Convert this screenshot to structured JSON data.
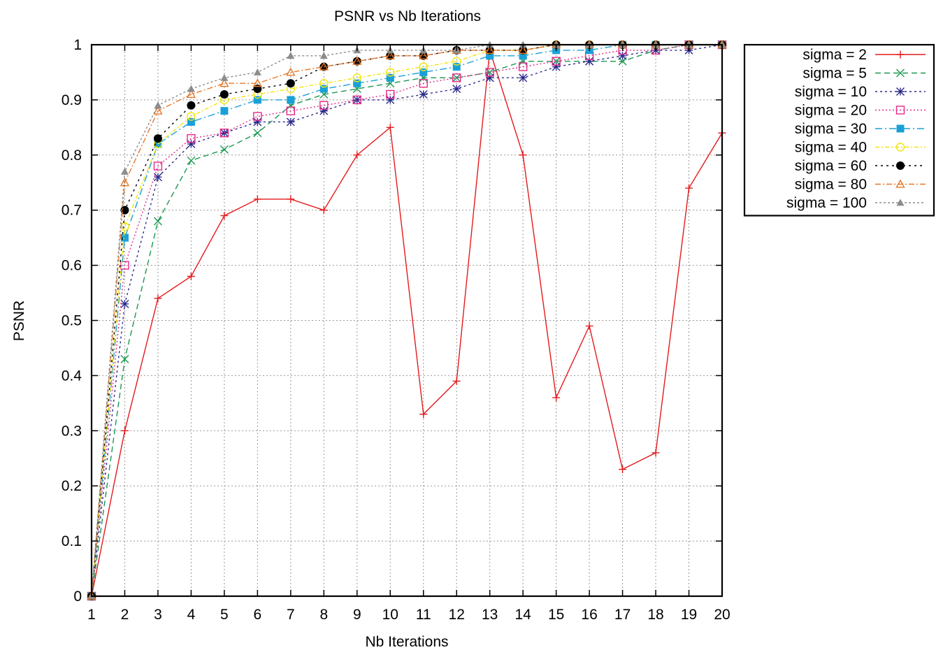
{
  "chart_data": {
    "type": "line",
    "title": "PSNR vs Nb Iterations",
    "xlabel": "Nb Iterations",
    "ylabel": "PSNR",
    "x": [
      1,
      2,
      3,
      4,
      5,
      6,
      7,
      8,
      9,
      10,
      11,
      12,
      13,
      14,
      15,
      16,
      17,
      18,
      19,
      20
    ],
    "xlim": [
      1,
      20
    ],
    "ylim": [
      0,
      1
    ],
    "xticks": [
      "1",
      "2",
      "3",
      "4",
      "5",
      "6",
      "7",
      "8",
      "9",
      "10",
      "11",
      "12",
      "13",
      "14",
      "15",
      "16",
      "17",
      "18",
      "19",
      "20"
    ],
    "yticks": [
      "0",
      "0.1",
      "0.2",
      "0.3",
      "0.4",
      "0.5",
      "0.6",
      "0.7",
      "0.8",
      "0.9",
      "1"
    ],
    "grid": true,
    "legend_position": "outside-top-right",
    "series": [
      {
        "name": "sigma = 2",
        "color": "#e41a1c",
        "marker": "plus",
        "dash": "",
        "values": [
          0,
          0.3,
          0.54,
          0.58,
          0.69,
          0.72,
          0.72,
          0.7,
          0.8,
          0.85,
          0.33,
          0.39,
          0.99,
          0.8,
          0.36,
          0.49,
          0.23,
          0.26,
          0.74,
          0.84
        ]
      },
      {
        "name": "sigma = 5",
        "color": "#1a9850",
        "marker": "cross",
        "dash": "8,5",
        "values": [
          0,
          0.43,
          0.68,
          0.79,
          0.81,
          0.84,
          0.89,
          0.91,
          0.92,
          0.93,
          0.94,
          0.94,
          0.95,
          0.97,
          0.97,
          0.97,
          0.97,
          0.99,
          1.0,
          1.0
        ]
      },
      {
        "name": "sigma = 10",
        "color": "#2b2b8c",
        "marker": "star",
        "dash": "3,4",
        "values": [
          0,
          0.53,
          0.76,
          0.82,
          0.84,
          0.86,
          0.86,
          0.88,
          0.9,
          0.9,
          0.91,
          0.92,
          0.94,
          0.94,
          0.96,
          0.97,
          0.98,
          0.99,
          0.99,
          1.0
        ]
      },
      {
        "name": "sigma = 20",
        "color": "#e7298a",
        "marker": "square-open",
        "dash": "2,3",
        "values": [
          0,
          0.6,
          0.78,
          0.83,
          0.84,
          0.87,
          0.88,
          0.89,
          0.9,
          0.91,
          0.93,
          0.94,
          0.95,
          0.96,
          0.97,
          0.98,
          0.99,
          0.99,
          1.0,
          1.0
        ]
      },
      {
        "name": "sigma = 30",
        "color": "#1aa0d8",
        "marker": "square-filled",
        "dash": "10,4,2,4",
        "values": [
          0,
          0.65,
          0.82,
          0.86,
          0.88,
          0.9,
          0.9,
          0.92,
          0.93,
          0.94,
          0.95,
          0.96,
          0.98,
          0.98,
          0.99,
          0.99,
          1.0,
          1.0,
          1.0,
          1.0
        ]
      },
      {
        "name": "sigma = 40",
        "color": "#f2e60a",
        "marker": "circle-open",
        "dash": "6,3,2,3",
        "values": [
          0,
          0.67,
          0.82,
          0.87,
          0.9,
          0.91,
          0.92,
          0.93,
          0.94,
          0.95,
          0.96,
          0.97,
          0.99,
          0.99,
          1.0,
          1.0,
          1.0,
          1.0,
          1.0,
          1.0
        ]
      },
      {
        "name": "sigma = 60",
        "color": "#000000",
        "marker": "circle-filled",
        "dash": "3,5",
        "values": [
          0,
          0.7,
          0.83,
          0.89,
          0.91,
          0.92,
          0.93,
          0.96,
          0.97,
          0.98,
          0.98,
          0.99,
          0.99,
          0.99,
          1.0,
          1.0,
          1.0,
          1.0,
          1.0,
          1.0
        ]
      },
      {
        "name": "sigma = 80",
        "color": "#e6792b",
        "marker": "triangle-open",
        "dash": "8,3,2,3",
        "values": [
          0,
          0.75,
          0.88,
          0.91,
          0.93,
          0.93,
          0.95,
          0.96,
          0.97,
          0.98,
          0.98,
          0.99,
          0.99,
          0.99,
          1.0,
          1.0,
          1.0,
          1.0,
          1.0,
          1.0
        ]
      },
      {
        "name": "sigma = 100",
        "color": "#8c8c8c",
        "marker": "triangle-filled",
        "dash": "3,3",
        "values": [
          0,
          0.77,
          0.89,
          0.92,
          0.94,
          0.95,
          0.98,
          0.98,
          0.99,
          0.99,
          0.99,
          0.99,
          1.0,
          1.0,
          1.0,
          1.0,
          1.0,
          1.0,
          1.0,
          1.0
        ]
      }
    ]
  }
}
